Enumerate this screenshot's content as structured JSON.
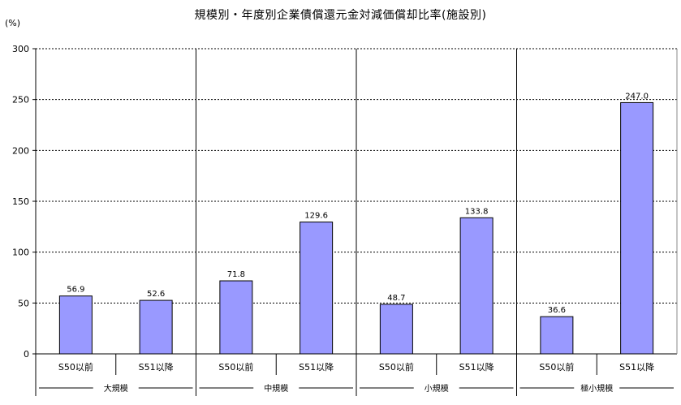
{
  "chart_data": {
    "type": "bar",
    "title": "規模別・年度別企業債償還元金対減価償却比率(施設別)",
    "y_unit": "(%)",
    "ylim": [
      0,
      300
    ],
    "y_ticks": [
      0,
      50,
      100,
      150,
      200,
      250,
      300
    ],
    "grid": true,
    "bar_color": "#9999ff",
    "groups": [
      {
        "name": "大規模",
        "categories": [
          "S50以前",
          "S51以降"
        ],
        "values": [
          56.9,
          52.6
        ],
        "labels": [
          "56.9",
          "52.6"
        ]
      },
      {
        "name": "中規模",
        "categories": [
          "S50以前",
          "S51以降"
        ],
        "values": [
          71.8,
          129.6
        ],
        "labels": [
          "71.8",
          "129.6"
        ]
      },
      {
        "name": "小規模",
        "categories": [
          "S50以前",
          "S51以降"
        ],
        "values": [
          48.7,
          133.8
        ],
        "labels": [
          "48.7",
          "133.8"
        ]
      },
      {
        "name": "極小規模",
        "categories": [
          "S50以前",
          "S51以降"
        ],
        "values": [
          36.6,
          247.0
        ],
        "labels": [
          "36.6",
          "247.0"
        ]
      }
    ]
  }
}
